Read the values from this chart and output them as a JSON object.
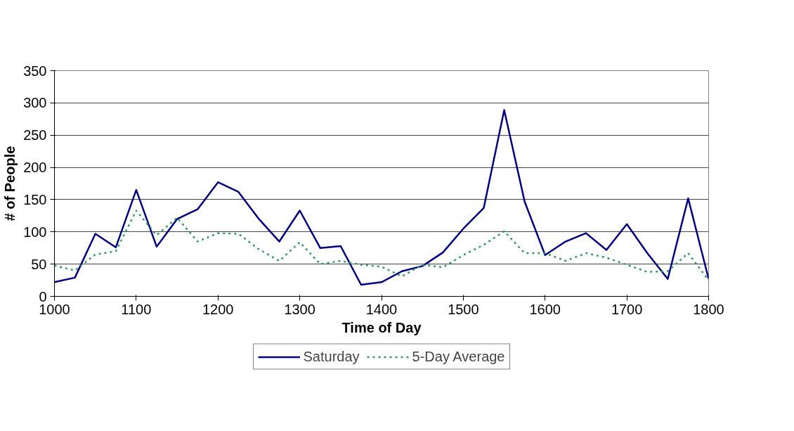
{
  "chart_data": {
    "type": "line",
    "xlabel": "Time of Day",
    "ylabel": "# of People",
    "x": [
      1000,
      1025,
      1050,
      1075,
      1100,
      1125,
      1150,
      1175,
      1200,
      1225,
      1250,
      1275,
      1300,
      1325,
      1350,
      1375,
      1400,
      1425,
      1450,
      1475,
      1500,
      1525,
      1550,
      1575,
      1600,
      1625,
      1650,
      1675,
      1700,
      1725,
      1750,
      1775,
      1800
    ],
    "series": [
      {
        "name": "Saturday",
        "color": "#000080",
        "line_style": "solid",
        "values": [
          22,
          29,
          97,
          76,
          165,
          77,
          120,
          135,
          177,
          162,
          120,
          85,
          133,
          75,
          78,
          18,
          22,
          39,
          47,
          68,
          105,
          137,
          289,
          147,
          64,
          85,
          98,
          72,
          112,
          67,
          27,
          152,
          27
        ]
      },
      {
        "name": "5-Day Average",
        "color": "#339966",
        "line_style": "dotted",
        "values": [
          48,
          40,
          65,
          70,
          133,
          95,
          122,
          85,
          98,
          97,
          73,
          55,
          84,
          50,
          55,
          49,
          46,
          31,
          49,
          45,
          64,
          80,
          101,
          67,
          67,
          55,
          67,
          60,
          49,
          38,
          39,
          67,
          25
        ]
      }
    ],
    "xlim": [
      1000,
      1800
    ],
    "xticks": [
      1000,
      1100,
      1200,
      1300,
      1400,
      1500,
      1600,
      1700,
      1800
    ],
    "ylim": [
      0,
      350
    ],
    "yticks": [
      0,
      50,
      100,
      150,
      200,
      250,
      300,
      350
    ],
    "grid": "y",
    "legend": "bottom",
    "marker": "none"
  }
}
